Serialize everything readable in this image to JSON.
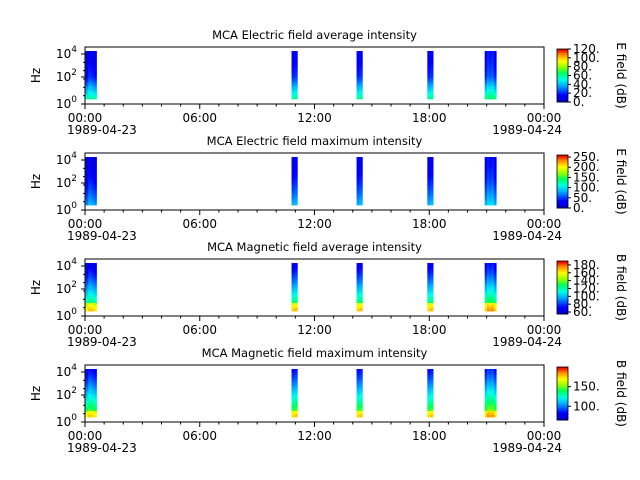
{
  "page": {
    "background": "#ffffff"
  },
  "chart_data": [
    {
      "type": "heatmap",
      "title": "MCA  Electric field average intensity",
      "ylabel": "Hz",
      "y_ticks": [
        "10^4",
        "10^2",
        "10^0"
      ],
      "x_ticks": [
        "00:00",
        "06:00",
        "12:00",
        "18:00",
        "00:00"
      ],
      "x_dates": [
        "1989-04-23",
        "1989-04-24"
      ],
      "x_range_hours": [
        0,
        24
      ],
      "y_scale": "log",
      "colorbar": {
        "label": "E field (dB)",
        "ticks": [
          "120.",
          "100.",
          "80.",
          "60.",
          "40.",
          "20.",
          "0."
        ],
        "range": [
          0,
          120
        ]
      },
      "intervals_hours": [
        [
          0.03,
          0.6
        ],
        [
          10.8,
          11.1
        ],
        [
          14.2,
          14.5
        ],
        [
          17.9,
          18.2
        ],
        [
          20.9,
          21.5
        ]
      ],
      "intensity_profile": "electric-average"
    },
    {
      "type": "heatmap",
      "title": "MCA  Electric field maximum intensity",
      "ylabel": "Hz",
      "y_ticks": [
        "10^4",
        "10^2",
        "10^0"
      ],
      "x_ticks": [
        "00:00",
        "06:00",
        "12:00",
        "18:00",
        "00:00"
      ],
      "x_dates": [
        "1989-04-23",
        "1989-04-24"
      ],
      "x_range_hours": [
        0,
        24
      ],
      "y_scale": "log",
      "colorbar": {
        "label": "E field (dB)",
        "ticks": [
          "250.",
          "200.",
          "150.",
          "100.",
          "50.",
          "0."
        ],
        "range": [
          0,
          260
        ]
      },
      "intervals_hours": [
        [
          0.03,
          0.6
        ],
        [
          10.8,
          11.1
        ],
        [
          14.2,
          14.5
        ],
        [
          17.9,
          18.2
        ],
        [
          20.9,
          21.5
        ]
      ],
      "intensity_profile": "electric-maximum"
    },
    {
      "type": "heatmap",
      "title": "MCA  Magnetic field average intensity",
      "ylabel": "Hz",
      "y_ticks": [
        "10^4",
        "10^2",
        "10^0"
      ],
      "x_ticks": [
        "00:00",
        "06:00",
        "12:00",
        "18:00",
        "00:00"
      ],
      "x_dates": [
        "1989-04-23",
        "1989-04-24"
      ],
      "x_range_hours": [
        0,
        24
      ],
      "y_scale": "log",
      "colorbar": {
        "label": "B field (dB)",
        "ticks": [
          "180.",
          "160.",
          "140.",
          "120.",
          "100.",
          "80.",
          "60."
        ],
        "range": [
          55,
          190
        ]
      },
      "intervals_hours": [
        [
          0.03,
          0.6
        ],
        [
          10.8,
          11.1
        ],
        [
          14.2,
          14.5
        ],
        [
          17.9,
          18.2
        ],
        [
          20.9,
          21.5
        ]
      ],
      "intensity_profile": "magnetic-average"
    },
    {
      "type": "heatmap",
      "title": "MCA  Magnetic field maximum intensity",
      "ylabel": "Hz",
      "y_ticks": [
        "10^4",
        "10^2",
        "10^0"
      ],
      "x_ticks": [
        "00:00",
        "06:00",
        "12:00",
        "18:00",
        "00:00"
      ],
      "x_dates": [
        "1989-04-23",
        "1989-04-24"
      ],
      "x_range_hours": [
        0,
        24
      ],
      "y_scale": "log",
      "colorbar": {
        "label": "B field (dB)",
        "ticks": [
          "150.",
          "100."
        ],
        "range": [
          65,
          200
        ]
      },
      "intervals_hours": [
        [
          0.03,
          0.6
        ],
        [
          10.8,
          11.1
        ],
        [
          14.2,
          14.5
        ],
        [
          17.9,
          18.2
        ],
        [
          20.9,
          21.5
        ]
      ],
      "intensity_profile": "magnetic-maximum"
    }
  ]
}
